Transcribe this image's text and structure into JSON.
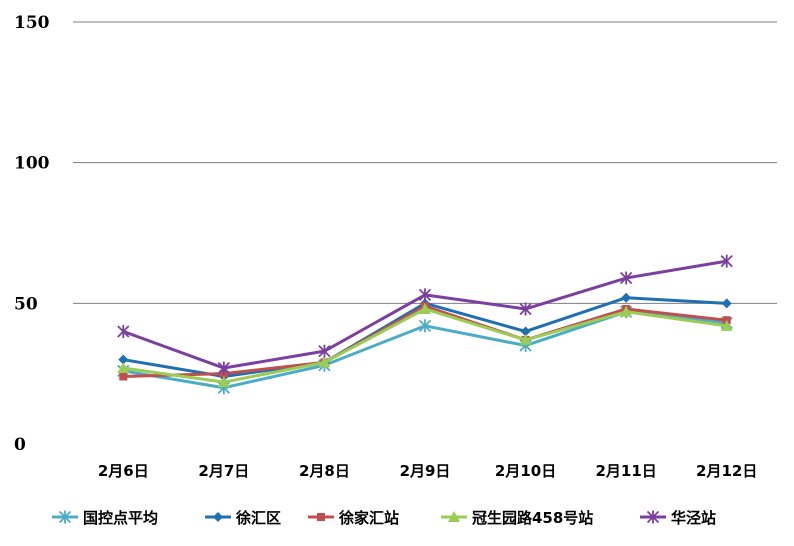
{
  "chart_data": {
    "type": "line",
    "title": "",
    "xlabel": "",
    "ylabel": "",
    "categories": [
      "2月6日",
      "2月7日",
      "2月8日",
      "2月9日",
      "2月10日",
      "2月11日",
      "2月12日"
    ],
    "ylim": [
      0,
      150
    ],
    "yticks": [
      0,
      50,
      100,
      150
    ],
    "grid": true,
    "legend_position": "bottom",
    "series": [
      {
        "name": "国控点平均",
        "color": "#4bacc6",
        "marker": "star",
        "values": [
          26,
          20,
          28,
          42,
          35,
          47,
          43
        ]
      },
      {
        "name": "徐汇区",
        "color": "#1f6fb2",
        "marker": "diamond",
        "values": [
          30,
          24,
          29,
          50,
          40,
          52,
          50
        ]
      },
      {
        "name": "徐家汇站",
        "color": "#c0504d",
        "marker": "square",
        "values": [
          24,
          25,
          29,
          49,
          37,
          48,
          44
        ]
      },
      {
        "name": "冠生园路458号站",
        "color": "#9bcc55",
        "marker": "triangle",
        "values": [
          27,
          22,
          29,
          48,
          37,
          47,
          42
        ]
      },
      {
        "name": "华泾站",
        "color": "#7b3fa0",
        "marker": "star",
        "values": [
          40,
          27,
          33,
          53,
          48,
          59,
          65
        ]
      }
    ]
  }
}
